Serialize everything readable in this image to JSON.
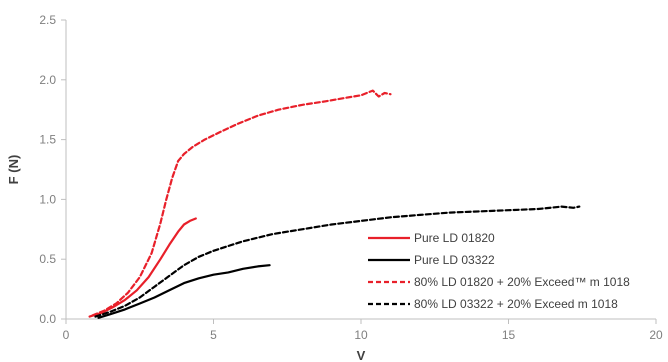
{
  "chart_data": {
    "type": "line",
    "title": "",
    "xlabel": "V",
    "ylabel": "F (N)",
    "xlim": [
      0,
      20
    ],
    "ylim": [
      0,
      2.5
    ],
    "xticks": [
      0,
      5,
      10,
      15,
      20
    ],
    "xtick_labels": [
      "0",
      "5",
      "10",
      "15",
      "20"
    ],
    "yticks": [
      0,
      0.5,
      1.0,
      1.5,
      2.0,
      2.5
    ],
    "ytick_labels": [
      "0.0",
      "0.5",
      "1.0",
      "1.5",
      "2.0",
      "2.5"
    ],
    "grid": false,
    "legend_position": "right",
    "series": [
      {
        "name": "Pure LD 01820",
        "color": "#e8202a",
        "dash": "solid",
        "x": [
          0.8,
          1.2,
          1.6,
          2.0,
          2.4,
          2.8,
          3.2,
          3.5,
          3.8,
          4.0,
          4.2,
          4.4
        ],
        "y": [
          0.02,
          0.05,
          0.1,
          0.16,
          0.24,
          0.35,
          0.5,
          0.62,
          0.73,
          0.79,
          0.82,
          0.84
        ]
      },
      {
        "name": "Pure LD 03322",
        "color": "#000000",
        "dash": "solid",
        "x": [
          1.1,
          1.5,
          2.0,
          2.5,
          3.0,
          3.5,
          4.0,
          4.5,
          5.0,
          5.5,
          6.0,
          6.5,
          6.9
        ],
        "y": [
          0.01,
          0.04,
          0.08,
          0.13,
          0.18,
          0.24,
          0.3,
          0.34,
          0.37,
          0.39,
          0.42,
          0.44,
          0.45
        ]
      },
      {
        "name": "80% LD 01820 + 20% Exceed™ m 1018",
        "color": "#e8202a",
        "dash": "dashed",
        "x": [
          0.9,
          1.3,
          1.7,
          2.1,
          2.5,
          2.9,
          3.2,
          3.4,
          3.6,
          3.8,
          4.0,
          4.3,
          4.7,
          5.2,
          5.8,
          6.5,
          7.2,
          8.0,
          8.8,
          9.5,
          10.0,
          10.4,
          10.6,
          10.8,
          11.0
        ],
        "y": [
          0.03,
          0.07,
          0.13,
          0.22,
          0.35,
          0.55,
          0.8,
          1.0,
          1.18,
          1.32,
          1.38,
          1.44,
          1.5,
          1.56,
          1.63,
          1.7,
          1.75,
          1.79,
          1.82,
          1.85,
          1.87,
          1.91,
          1.86,
          1.89,
          1.88
        ]
      },
      {
        "name": "80% LD 03322 + 20% Exceed m 1018",
        "color": "#000000",
        "dash": "dashed",
        "x": [
          1.0,
          1.5,
          2.0,
          2.5,
          3.0,
          3.5,
          4.0,
          4.5,
          5.0,
          5.5,
          6.0,
          7.0,
          8.0,
          9.0,
          10.0,
          11.0,
          12.0,
          13.0,
          14.0,
          15.0,
          16.0,
          16.8,
          17.2,
          17.4
        ],
        "y": [
          0.02,
          0.06,
          0.11,
          0.18,
          0.27,
          0.36,
          0.45,
          0.52,
          0.57,
          0.61,
          0.65,
          0.71,
          0.75,
          0.79,
          0.82,
          0.85,
          0.87,
          0.89,
          0.9,
          0.91,
          0.92,
          0.94,
          0.93,
          0.94
        ]
      }
    ]
  }
}
